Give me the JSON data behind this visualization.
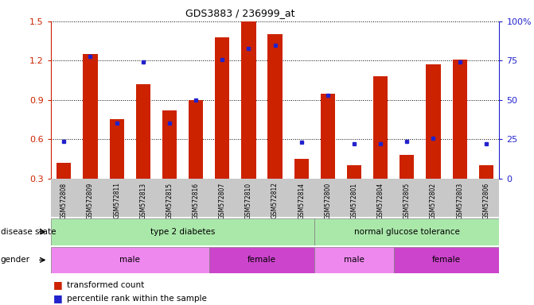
{
  "title": "GDS3883 / 236999_at",
  "samples": [
    "GSM572808",
    "GSM572809",
    "GSM572811",
    "GSM572813",
    "GSM572815",
    "GSM572816",
    "GSM572807",
    "GSM572810",
    "GSM572812",
    "GSM572814",
    "GSM572800",
    "GSM572801",
    "GSM572804",
    "GSM572805",
    "GSM572802",
    "GSM572803",
    "GSM572806"
  ],
  "bar_values": [
    0.42,
    1.25,
    0.75,
    1.02,
    0.82,
    0.9,
    1.38,
    1.5,
    1.4,
    0.45,
    0.95,
    0.4,
    1.08,
    0.48,
    1.17,
    1.21,
    0.4
  ],
  "blue_values": [
    0.585,
    1.23,
    0.72,
    1.19,
    0.72,
    0.9,
    1.21,
    1.29,
    1.32,
    0.575,
    0.935,
    0.565,
    0.565,
    0.585,
    0.61,
    1.19,
    0.565
  ],
  "ylim_left": [
    0.3,
    1.5
  ],
  "ylim_right": [
    0,
    100
  ],
  "yticks_left": [
    0.3,
    0.6,
    0.9,
    1.2,
    1.5
  ],
  "yticks_right": [
    0,
    25,
    50,
    75,
    100
  ],
  "bar_color": "#cc2200",
  "blue_color": "#2222cc",
  "ax_label_color_left": "#cc2200",
  "ax_label_color_right": "#2222cc",
  "tick_bg_color": "#c8c8c8",
  "disease_state_groups": [
    {
      "label": "type 2 diabetes",
      "start": 0,
      "end": 10,
      "color": "#aae8aa"
    },
    {
      "label": "normal glucose tolerance",
      "start": 10,
      "end": 17,
      "color": "#aae8aa"
    }
  ],
  "gender_groups": [
    {
      "label": "male",
      "start": 0,
      "end": 6,
      "color": "#ee88ee"
    },
    {
      "label": "female",
      "start": 6,
      "end": 10,
      "color": "#cc44cc"
    },
    {
      "label": "male",
      "start": 10,
      "end": 13,
      "color": "#ee88ee"
    },
    {
      "label": "female",
      "start": 13,
      "end": 17,
      "color": "#cc44cc"
    }
  ]
}
